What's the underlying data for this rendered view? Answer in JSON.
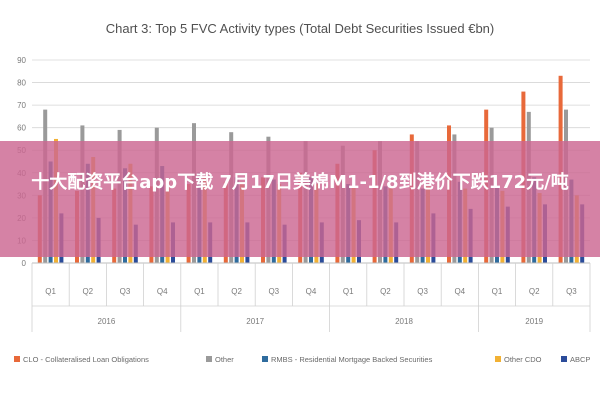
{
  "chart_data": {
    "type": "bar",
    "title": "Chart 3: Top 5 FVC Activity types (Total Debt Securities Issued €bn)",
    "xlabel": "",
    "ylabel": "",
    "ylim": [
      0,
      90
    ],
    "yticks": [
      0,
      10,
      20,
      30,
      40,
      50,
      60,
      70,
      80,
      90
    ],
    "grid": "on",
    "legend_placement": "bottom",
    "categories": [
      "Q1",
      "Q2",
      "Q3",
      "Q4",
      "Q1",
      "Q2",
      "Q3",
      "Q4",
      "Q1",
      "Q2",
      "Q3",
      "Q4",
      "Q1",
      "Q2",
      "Q3"
    ],
    "years": [
      {
        "label": "2016",
        "span": 4
      },
      {
        "label": "2017",
        "span": 4
      },
      {
        "label": "2018",
        "span": 4
      },
      {
        "label": "2019",
        "span": 3
      }
    ],
    "series": [
      {
        "name": "CLO - Collateralised Loan Obligations",
        "color": "#e8693a",
        "values": [
          30,
          32,
          33,
          34,
          35,
          36,
          38,
          40,
          44,
          50,
          57,
          61,
          68,
          76,
          83
        ]
      },
      {
        "name": "Other",
        "color": "#9a9a9a",
        "values": [
          68,
          61,
          59,
          60,
          62,
          58,
          56,
          54,
          52,
          54,
          54,
          57,
          60,
          67,
          68
        ]
      },
      {
        "name": "RMBS - Residential Mortgage Backed Securities",
        "color": "#2f6c9e",
        "values": [
          45,
          44,
          42,
          43,
          40,
          38,
          37,
          38,
          35,
          34,
          33,
          36,
          34,
          38,
          37
        ]
      },
      {
        "name": "Other CDO",
        "color": "#f2b134",
        "values": [
          55,
          47,
          44,
          37,
          38,
          36,
          35,
          35,
          34,
          33,
          34,
          33,
          32,
          31,
          30
        ]
      },
      {
        "name": "ABCP",
        "color": "#2b4c9a",
        "values": [
          22,
          20,
          17,
          18,
          18,
          18,
          17,
          18,
          19,
          18,
          22,
          24,
          25,
          26,
          26
        ]
      }
    ]
  },
  "overlay": {
    "text": "十大配资平台app下载 7月17日美棉M1-1/8到港价下跌172元/吨"
  }
}
